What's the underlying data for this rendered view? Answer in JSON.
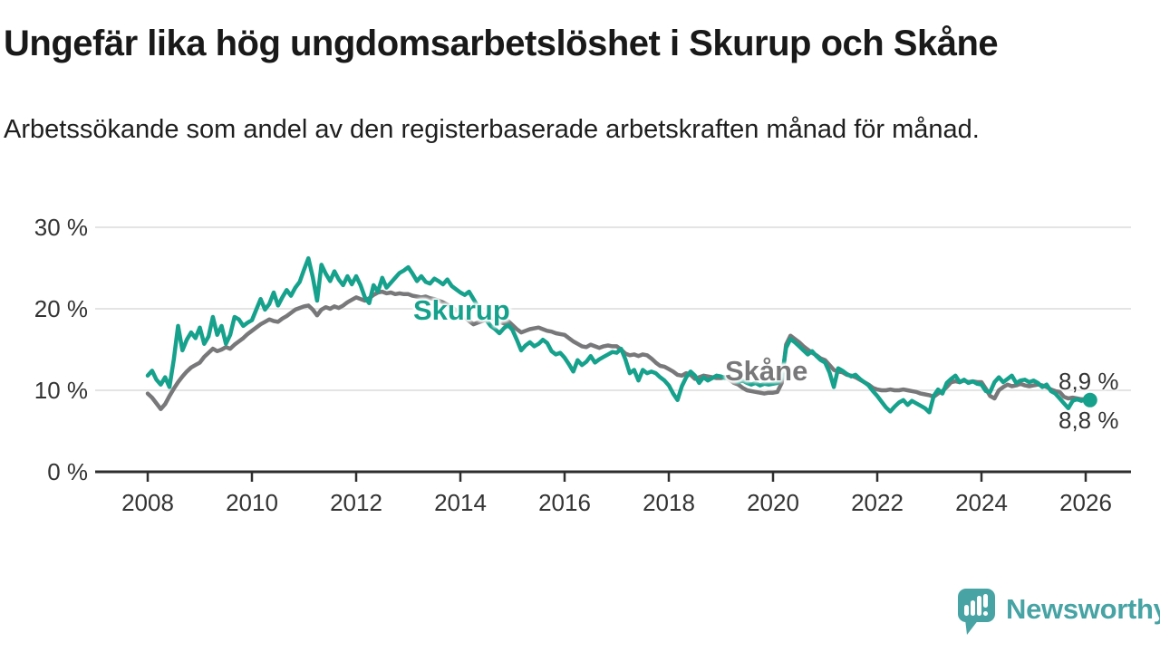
{
  "title": "Ungefär lika hög ungdomsarbetslöshet i Skurup och Skåne",
  "subtitle": "Arbetssökande som andel av den registerbaserade arbetskraften månad för månad.",
  "watermark": {
    "brand": "Newsworthy",
    "icon": "newsworthy-speech-bubble-bar-chart-icon",
    "color": "#47a3a4"
  },
  "chart_data": {
    "type": "line",
    "unit": "%",
    "title": "Ungefär lika hög ungdomsarbetslöshet i Skurup och Skåne",
    "xlabel": "",
    "ylabel": "",
    "x_start": "2008-01",
    "x_end": "2026-02",
    "x_frequency": "monthly",
    "x_tick_labels": [
      "2008",
      "2010",
      "2012",
      "2014",
      "2016",
      "2018",
      "2020",
      "2022",
      "2024",
      "2026"
    ],
    "y_tick_labels": [
      "30 %",
      "20 %",
      "10 %",
      "0 %"
    ],
    "y_tick_values": [
      30,
      20,
      10,
      0
    ],
    "ylim": [
      0,
      32
    ],
    "grid": "horizontal",
    "legend": "inline-labels",
    "series": [
      {
        "name": "Skurup",
        "color": "#16a18c",
        "end_label": "8,8 %",
        "end_dot": true,
        "values": [
          11.8,
          12.4,
          11.3,
          10.7,
          11.6,
          10.4,
          13.8,
          17.9,
          14.9,
          16.2,
          17.1,
          16.4,
          17.7,
          15.7,
          16.6,
          19.0,
          16.8,
          17.9,
          15.7,
          16.8,
          19.0,
          18.7,
          17.9,
          18.3,
          18.6,
          19.9,
          21.2,
          19.9,
          20.6,
          22.0,
          20.4,
          21.4,
          22.3,
          21.6,
          22.6,
          23.3,
          24.8,
          26.2,
          23.9,
          21.0,
          25.4,
          24.3,
          23.4,
          24.6,
          23.6,
          22.9,
          24.0,
          23.0,
          24.0,
          22.9,
          21.4,
          20.7,
          22.9,
          22.1,
          23.8,
          22.6,
          23.2,
          23.8,
          24.4,
          24.7,
          25.1,
          24.3,
          23.4,
          24.0,
          23.3,
          23.1,
          23.7,
          23.4,
          23.0,
          23.6,
          22.8,
          22.4,
          22.0,
          21.7,
          22.1,
          21.2,
          20.3,
          19.4,
          18.6,
          17.9,
          17.5,
          17.0,
          17.6,
          18.0,
          17.4,
          16.2,
          14.9,
          15.5,
          15.9,
          15.4,
          15.7,
          16.2,
          15.8,
          14.8,
          14.4,
          14.6,
          14.0,
          13.2,
          12.3,
          13.7,
          13.1,
          13.5,
          14.2,
          13.4,
          13.8,
          14.1,
          14.4,
          14.7,
          14.6,
          15.1,
          13.8,
          12.1,
          12.5,
          11.2,
          12.5,
          12.1,
          12.3,
          12.1,
          11.6,
          11.2,
          10.6,
          9.6,
          8.8,
          10.5,
          11.6,
          12.3,
          11.8,
          10.9,
          11.6,
          11.2,
          11.5,
          11.8,
          11.7,
          11.5,
          11.8,
          11.3,
          11.0,
          11.2,
          10.9,
          10.7,
          10.9,
          10.6,
          10.8,
          10.7,
          10.8,
          10.9,
          11.5,
          15.2,
          16.3,
          15.9,
          15.4,
          14.9,
          14.4,
          14.8,
          14.2,
          13.7,
          13.4,
          12.2,
          10.4,
          12.7,
          12.4,
          12.0,
          11.7,
          11.9,
          11.4,
          11.0,
          10.6,
          9.9,
          9.3,
          8.6,
          7.9,
          7.4,
          8.0,
          8.5,
          8.8,
          8.2,
          8.7,
          8.4,
          8.1,
          7.8,
          7.3,
          9.3,
          10.1,
          9.6,
          10.9,
          11.4,
          11.8,
          11.0,
          11.3,
          10.9,
          11.1,
          10.8,
          10.7,
          9.9,
          9.8,
          11.0,
          11.6,
          11.0,
          11.4,
          11.8,
          10.9,
          11.2,
          11.3,
          11.0,
          11.2,
          10.9,
          10.4,
          10.7,
          9.9,
          9.6,
          9.0,
          8.4,
          7.8,
          8.7,
          8.9,
          8.7,
          8.9,
          8.8
        ]
      },
      {
        "name": "Skåne",
        "color": "#78787a",
        "end_label": "8,9 %",
        "end_dot": false,
        "values": [
          9.6,
          9.1,
          8.4,
          7.7,
          8.3,
          9.3,
          10.2,
          11.0,
          11.7,
          12.3,
          12.8,
          13.1,
          13.4,
          14.1,
          14.6,
          15.1,
          14.8,
          15.0,
          15.3,
          15.1,
          15.6,
          16.0,
          16.4,
          16.9,
          17.3,
          17.7,
          18.1,
          18.4,
          18.7,
          18.5,
          18.4,
          18.8,
          19.1,
          19.5,
          19.9,
          20.1,
          20.3,
          20.4,
          19.9,
          19.2,
          19.9,
          20.2,
          20.0,
          20.3,
          20.1,
          20.4,
          20.8,
          21.1,
          21.4,
          21.2,
          21.0,
          21.3,
          21.7,
          22.0,
          22.1,
          21.9,
          22.0,
          21.8,
          21.9,
          21.8,
          21.8,
          21.6,
          21.5,
          21.4,
          21.5,
          21.3,
          21.2,
          21.0,
          20.8,
          20.5,
          20.2,
          19.8,
          19.5,
          19.0,
          18.5,
          18.1,
          18.3,
          18.5,
          18.7,
          18.9,
          18.7,
          18.4,
          18.2,
          18.5,
          18.0,
          17.5,
          17.1,
          17.3,
          17.5,
          17.6,
          17.7,
          17.5,
          17.3,
          17.2,
          17.0,
          16.9,
          16.8,
          16.4,
          16.0,
          15.7,
          15.4,
          15.3,
          15.6,
          15.4,
          15.2,
          15.4,
          15.5,
          15.4,
          15.4,
          15.0,
          14.5,
          14.3,
          14.4,
          14.2,
          14.4,
          14.3,
          13.9,
          13.4,
          13.0,
          12.9,
          12.6,
          12.3,
          11.9,
          11.8,
          12.1,
          11.9,
          11.4,
          11.6,
          11.8,
          11.7,
          11.6,
          11.5,
          11.5,
          11.6,
          11.3,
          10.9,
          10.7,
          10.3,
          10.0,
          9.9,
          9.8,
          9.7,
          9.6,
          9.7,
          9.7,
          9.8,
          10.9,
          15.6,
          16.7,
          16.3,
          15.9,
          15.4,
          15.0,
          14.6,
          14.3,
          13.9,
          13.7,
          13.1,
          12.5,
          12.3,
          12.2,
          11.9,
          11.8,
          11.6,
          11.3,
          11.0,
          10.7,
          10.3,
          10.1,
          10.0,
          10.0,
          10.1,
          10.0,
          10.0,
          10.1,
          10.0,
          9.9,
          9.8,
          9.6,
          9.5,
          9.4,
          9.2,
          9.6,
          9.9,
          10.4,
          11.0,
          11.1,
          11.0,
          11.2,
          11.0,
          11.1,
          11.0,
          11.0,
          10.2,
          9.3,
          9.0,
          10.0,
          10.4,
          10.7,
          10.5,
          10.6,
          10.8,
          10.6,
          10.5,
          10.6,
          10.7,
          10.6,
          10.4,
          10.1,
          9.9,
          9.8,
          9.2,
          9.0,
          9.1,
          9.0,
          8.9,
          8.9,
          8.9
        ]
      }
    ]
  }
}
